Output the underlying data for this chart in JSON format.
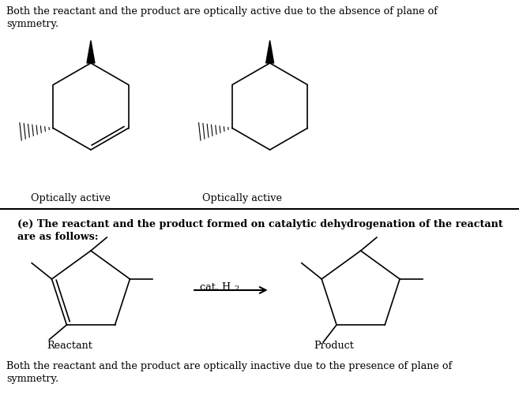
{
  "bg_color": "#ffffff",
  "fig_width": 6.57,
  "fig_height": 5.01,
  "dpi": 100,
  "top_text_line1": "Both the reactant and the product are optically active due to the absence of plane of",
  "top_text_line2": "symmetry.",
  "label_left": "Optically active",
  "label_right": "Optically active",
  "section_e_line1": "(e) The reactant and the product formed on catalytic dehydrogenation of the reactant",
  "section_e_line2": "are as follows:",
  "label_reactant": "Reactant",
  "label_product": "Product",
  "bottom_text_line1": "Both the reactant and the product are optically inactive due to the presence of plane of",
  "bottom_text_line2": "symmetry.",
  "text_color": "#000000",
  "line_color": "#000000"
}
